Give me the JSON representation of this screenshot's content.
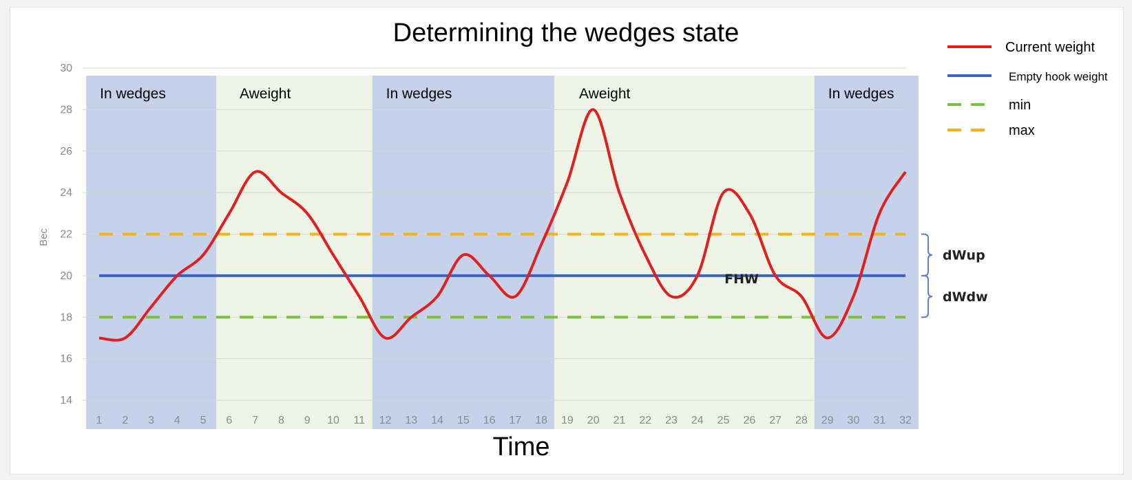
{
  "chart_data": {
    "type": "line",
    "title": "Determining the wedges state",
    "xlabel": "Time",
    "ylabel": "Bec",
    "x": [
      1,
      2,
      3,
      4,
      5,
      6,
      7,
      8,
      9,
      10,
      11,
      12,
      13,
      14,
      15,
      16,
      17,
      18,
      19,
      20,
      21,
      22,
      23,
      24,
      25,
      26,
      27,
      28,
      29,
      30,
      31,
      32
    ],
    "xlim": [
      1,
      32
    ],
    "ylim": [
      14,
      30
    ],
    "yticks": [
      14,
      16,
      18,
      20,
      22,
      24,
      26,
      28,
      30
    ],
    "grid": true,
    "legend_position": "top-right",
    "series": [
      {
        "name": "Current weight",
        "color": "#e02020",
        "style": "solid",
        "values": [
          17,
          17,
          18.5,
          20,
          21,
          23,
          25,
          24,
          23,
          21,
          19,
          17,
          18,
          19,
          21,
          20,
          19,
          21.5,
          24.5,
          28,
          24,
          21,
          19,
          20,
          24,
          23,
          20,
          19,
          17,
          19,
          23,
          25
        ]
      },
      {
        "name": "Empty hook weight",
        "color": "#3a62c8",
        "style": "solid",
        "constant": 20
      },
      {
        "name": "min",
        "color": "#7fbf3f",
        "style": "dashed",
        "constant": 18
      },
      {
        "name": "max",
        "color": "#f2b31c",
        "style": "dashed",
        "constant": 22
      }
    ],
    "regions": [
      {
        "label": "In wedges",
        "from": 1,
        "to": 5,
        "color": "#c6d2ea"
      },
      {
        "label": "Aweight",
        "from": 6,
        "to": 11,
        "color": "#eef5e6"
      },
      {
        "label": "In wedges",
        "from": 12,
        "to": 18,
        "color": "#c6d2ea"
      },
      {
        "label": "Aweight",
        "from": 19,
        "to": 28,
        "color": "#eef5e6"
      },
      {
        "label": "In wedges",
        "from": 29,
        "to": 32,
        "color": "#c6d2ea"
      }
    ],
    "annotations": [
      {
        "text": "FHW",
        "x": 25.7,
        "y": 20
      },
      {
        "text": "dWup",
        "between": [
          20,
          22
        ]
      },
      {
        "text": "dWdw",
        "between": [
          18,
          20
        ]
      }
    ]
  }
}
